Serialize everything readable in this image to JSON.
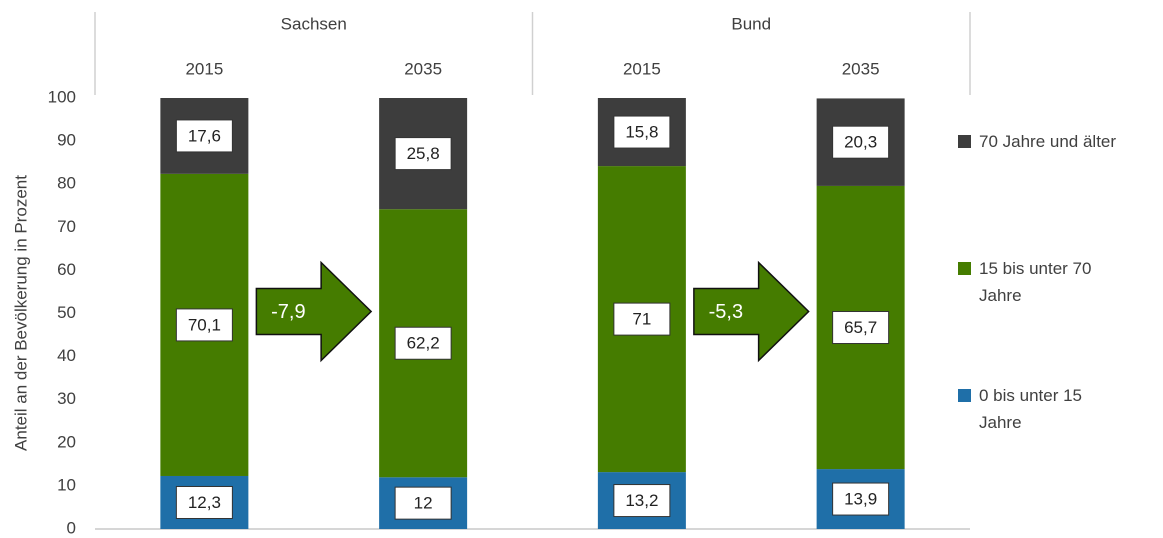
{
  "chart_data": {
    "type": "stacked_bar",
    "y_label": "Anteil an der Bevölkerung in Prozent",
    "category_groups": [
      "Sachsen",
      "Bund"
    ],
    "categories": [
      "2015",
      "2035",
      "2015",
      "2035"
    ],
    "series": [
      {
        "name": "0 bis unter 15 Jahre",
        "color": "#1f6fa8",
        "values": [
          12.3,
          12,
          13.2,
          13.9
        ],
        "value_labels": [
          "12,3",
          "12",
          "13,2",
          "13,9"
        ]
      },
      {
        "name": "15 bis unter 70 Jahre",
        "color": "#457c00",
        "values": [
          70.1,
          62.2,
          71,
          65.7
        ],
        "value_labels": [
          "70,1",
          "62,2",
          "71",
          "65,7"
        ]
      },
      {
        "name": "70 Jahre und älter",
        "color": "#3d3d3d",
        "values": [
          17.6,
          25.8,
          15.8,
          20.3
        ],
        "value_labels": [
          "17,6",
          "25,8",
          "15,8",
          "20,3"
        ]
      }
    ],
    "annotations": [
      "-7,9",
      "-5,3"
    ],
    "ylim": [
      0,
      100
    ],
    "yticks": [
      0,
      10,
      20,
      30,
      40,
      50,
      60,
      70,
      80,
      90,
      100
    ],
    "grid": false
  }
}
